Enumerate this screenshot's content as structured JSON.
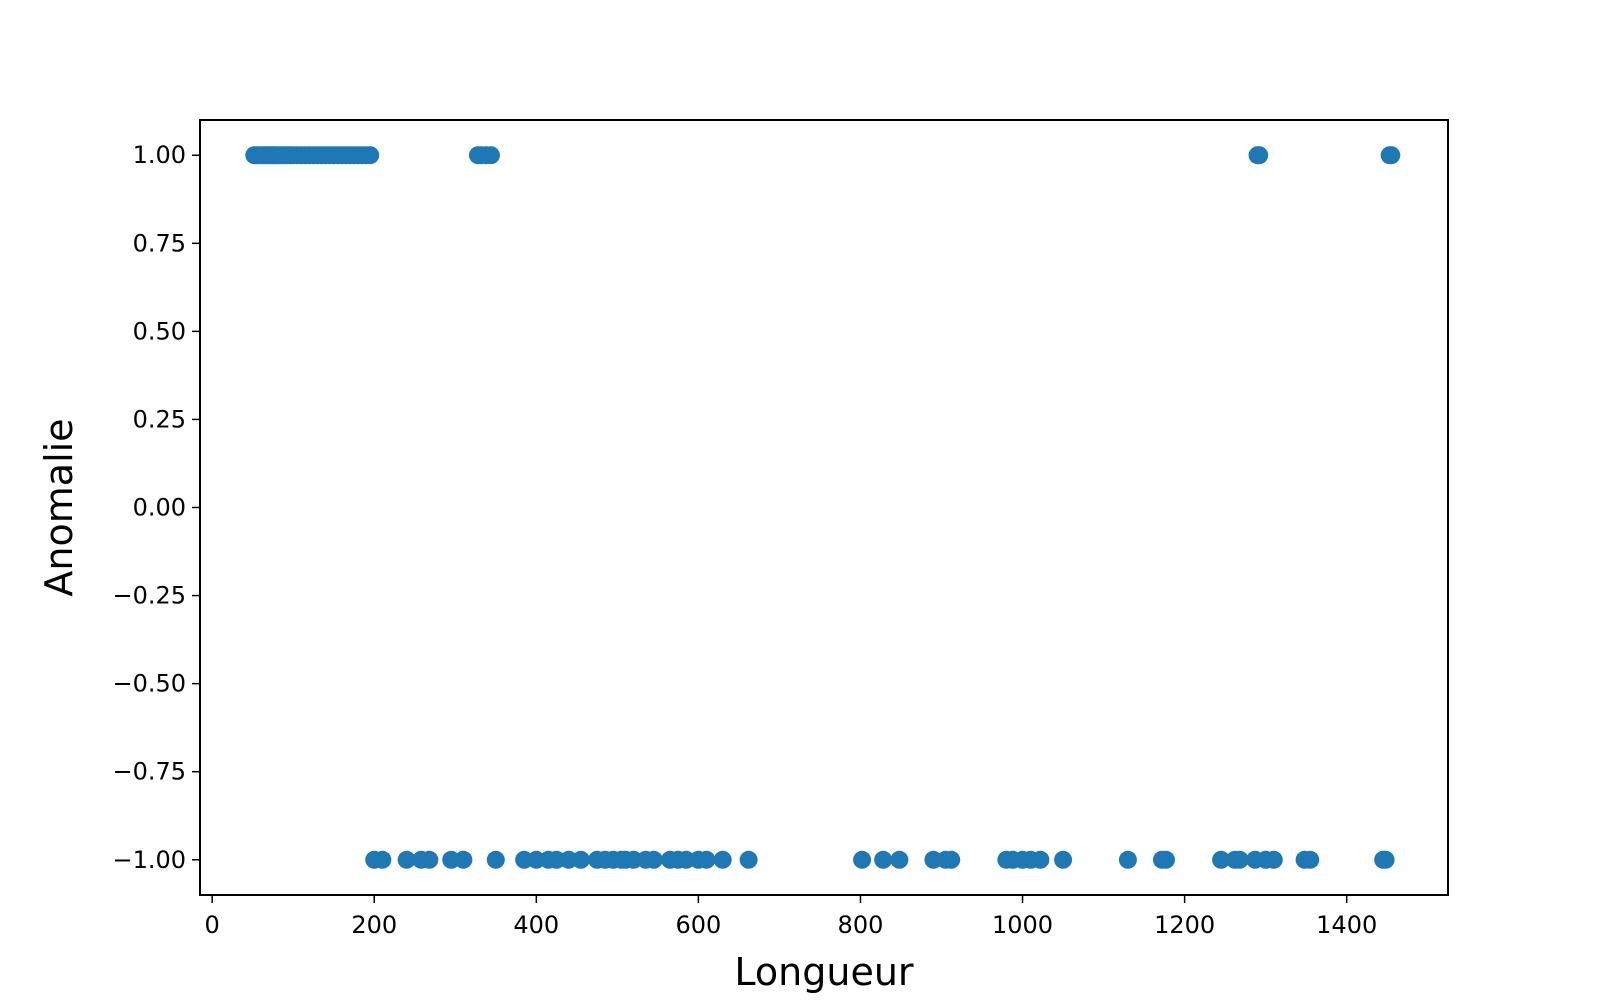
{
  "chart_data": {
    "type": "scatter",
    "title": "",
    "xlabel": "Longueur",
    "ylabel": "Anomalie",
    "xlim": [
      -15,
      1525
    ],
    "ylim": [
      -1.1,
      1.1
    ],
    "grid": false,
    "x_ticks": [
      0,
      200,
      400,
      600,
      800,
      1000,
      1200,
      1400
    ],
    "x_tick_labels": [
      "0",
      "200",
      "400",
      "600",
      "800",
      "1000",
      "1200",
      "1400"
    ],
    "y_ticks": [
      1.0,
      0.75,
      0.5,
      0.25,
      0.0,
      -0.25,
      -0.5,
      -0.75,
      -1.0
    ],
    "y_tick_labels": [
      "1.00",
      "0.75",
      "0.50",
      "0.25",
      "0.00",
      "−0.25",
      "−0.50",
      "−0.75",
      "−1.00"
    ],
    "marker_color": "#1f77b4",
    "series": [
      {
        "x": [
          52,
          55,
          58,
          62,
          65,
          68,
          71,
          74,
          77,
          80,
          84,
          88,
          92,
          96,
          100,
          105,
          110,
          115,
          120,
          125,
          130,
          135,
          140,
          145,
          150,
          155,
          160,
          165,
          170,
          175,
          180,
          185,
          190,
          195,
          328,
          332,
          338,
          344,
          1290,
          1292,
          1453,
          1455
        ],
        "y": [
          1,
          1,
          1,
          1,
          1,
          1,
          1,
          1,
          1,
          1,
          1,
          1,
          1,
          1,
          1,
          1,
          1,
          1,
          1,
          1,
          1,
          1,
          1,
          1,
          1,
          1,
          1,
          1,
          1,
          1,
          1,
          1,
          1,
          1,
          1,
          1,
          1,
          1,
          1,
          1,
          1,
          1
        ]
      },
      {
        "x": [
          200,
          210,
          240,
          258,
          268,
          295,
          310,
          350,
          385,
          400,
          415,
          425,
          440,
          455,
          475,
          485,
          495,
          505,
          510,
          520,
          535,
          545,
          565,
          575,
          585,
          600,
          610,
          630,
          662,
          802,
          828,
          848,
          890,
          905,
          912,
          980,
          988,
          1000,
          1010,
          1022,
          1050,
          1130,
          1172,
          1177,
          1245,
          1262,
          1268,
          1287,
          1300,
          1310,
          1348,
          1355,
          1445,
          1448
        ],
        "y": [
          -1,
          -1,
          -1,
          -1,
          -1,
          -1,
          -1,
          -1,
          -1,
          -1,
          -1,
          -1,
          -1,
          -1,
          -1,
          -1,
          -1,
          -1,
          -1,
          -1,
          -1,
          -1,
          -1,
          -1,
          -1,
          -1,
          -1,
          -1,
          -1,
          -1,
          -1,
          -1,
          -1,
          -1,
          -1,
          -1,
          -1,
          -1,
          -1,
          -1,
          -1,
          -1,
          -1,
          -1,
          -1,
          -1,
          -1,
          -1,
          -1,
          -1,
          -1,
          -1,
          -1,
          -1
        ]
      }
    ]
  }
}
